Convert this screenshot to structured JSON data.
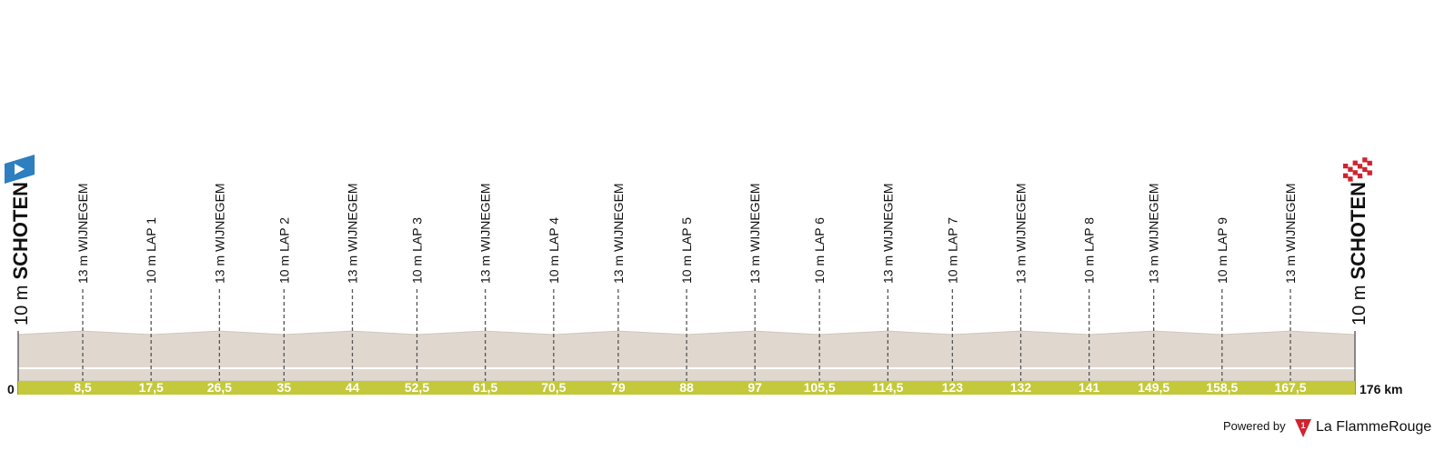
{
  "chart_data": {
    "type": "profile",
    "xlim": [
      0,
      176
    ],
    "xticks": [
      {
        "value": 0,
        "label": "0"
      },
      {
        "value": 176,
        "label": "176 km"
      }
    ],
    "profile_color": "#e0d8cf",
    "band_color": "#c3c93a",
    "start": {
      "elevation": {
        "value": 10,
        "label": "10 m"
      },
      "name": "SCHOTEN"
    },
    "finish": {
      "elevation": {
        "value": 10,
        "label": "10 m"
      },
      "name": "SCHOTEN"
    },
    "markers": [
      {
        "km": {
          "value": 8.5,
          "label": "8,5"
        },
        "elevation": {
          "value": 13,
          "label": "13 m"
        },
        "name": "WIJNEGEM"
      },
      {
        "km": {
          "value": 17.5,
          "label": "17,5"
        },
        "elevation": {
          "value": 10,
          "label": "10 m"
        },
        "name": "LAP 1"
      },
      {
        "km": {
          "value": 26.5,
          "label": "26,5"
        },
        "elevation": {
          "value": 13,
          "label": "13 m"
        },
        "name": "WIJNEGEM"
      },
      {
        "km": {
          "value": 35,
          "label": "35"
        },
        "elevation": {
          "value": 10,
          "label": "10 m"
        },
        "name": "LAP 2"
      },
      {
        "km": {
          "value": 44,
          "label": "44"
        },
        "elevation": {
          "value": 13,
          "label": "13 m"
        },
        "name": "WIJNEGEM"
      },
      {
        "km": {
          "value": 52.5,
          "label": "52,5"
        },
        "elevation": {
          "value": 10,
          "label": "10 m"
        },
        "name": "LAP 3"
      },
      {
        "km": {
          "value": 61.5,
          "label": "61,5"
        },
        "elevation": {
          "value": 13,
          "label": "13 m"
        },
        "name": "WIJNEGEM"
      },
      {
        "km": {
          "value": 70.5,
          "label": "70,5"
        },
        "elevation": {
          "value": 10,
          "label": "10 m"
        },
        "name": "LAP 4"
      },
      {
        "km": {
          "value": 79,
          "label": "79"
        },
        "elevation": {
          "value": 13,
          "label": "13 m"
        },
        "name": "WIJNEGEM"
      },
      {
        "km": {
          "value": 88,
          "label": "88"
        },
        "elevation": {
          "value": 10,
          "label": "10 m"
        },
        "name": "LAP 5"
      },
      {
        "km": {
          "value": 97,
          "label": "97"
        },
        "elevation": {
          "value": 13,
          "label": "13 m"
        },
        "name": "WIJNEGEM"
      },
      {
        "km": {
          "value": 105.5,
          "label": "105,5"
        },
        "elevation": {
          "value": 10,
          "label": "10 m"
        },
        "name": "LAP 6"
      },
      {
        "km": {
          "value": 114.5,
          "label": "114,5"
        },
        "elevation": {
          "value": 13,
          "label": "13 m"
        },
        "name": "WIJNEGEM"
      },
      {
        "km": {
          "value": 123,
          "label": "123"
        },
        "elevation": {
          "value": 10,
          "label": "10 m"
        },
        "name": "LAP 7"
      },
      {
        "km": {
          "value": 132,
          "label": "132"
        },
        "elevation": {
          "value": 13,
          "label": "13 m"
        },
        "name": "WIJNEGEM"
      },
      {
        "km": {
          "value": 141,
          "label": "141"
        },
        "elevation": {
          "value": 10,
          "label": "10 m"
        },
        "name": "LAP 8"
      },
      {
        "km": {
          "value": 149.5,
          "label": "149,5"
        },
        "elevation": {
          "value": 13,
          "label": "13 m"
        },
        "name": "WIJNEGEM"
      },
      {
        "km": {
          "value": 158.5,
          "label": "158,5"
        },
        "elevation": {
          "value": 10,
          "label": "10 m"
        },
        "name": "LAP 9"
      },
      {
        "km": {
          "value": 167.5,
          "label": "167,5"
        },
        "elevation": {
          "value": 13,
          "label": "13 m"
        },
        "name": "WIJNEGEM"
      }
    ]
  },
  "footer": {
    "powered_by": "Powered by",
    "brand_a": "La Flamme",
    "brand_b": "Rouge"
  }
}
